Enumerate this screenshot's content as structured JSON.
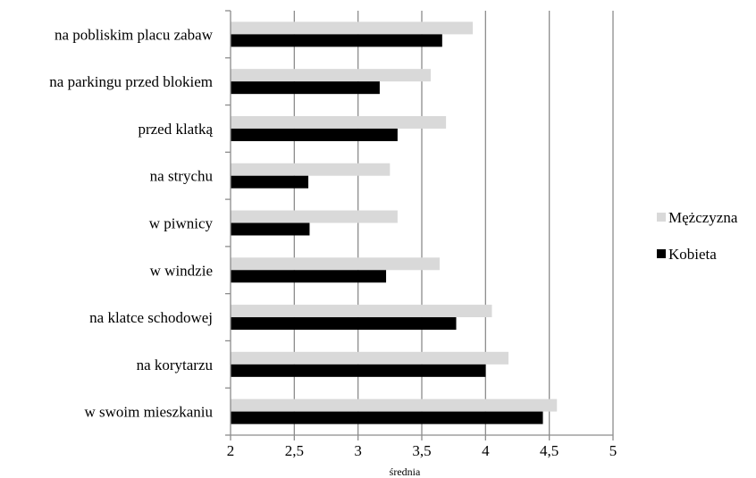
{
  "chart_data": {
    "type": "bar",
    "orientation": "horizontal",
    "categories": [
      "na pobliskim placu zabaw",
      "na parkingu przed blokiem",
      "przed klatką",
      "na strychu",
      "w piwnicy",
      "w windzie",
      "na klatce schodowej",
      "na korytarzu",
      "w swoim mieszkaniu"
    ],
    "series": [
      {
        "name": "Mężczyzna",
        "color": "#d9d9d9",
        "values": [
          3.9,
          3.57,
          3.69,
          3.25,
          3.31,
          3.64,
          4.05,
          4.18,
          4.56
        ]
      },
      {
        "name": "Kobieta",
        "color": "#000000",
        "values": [
          3.66,
          3.17,
          3.31,
          2.61,
          2.62,
          3.22,
          3.77,
          4.0,
          4.45
        ]
      }
    ],
    "xlabel": "średnia",
    "ylabel": "",
    "xlim": [
      2,
      5
    ],
    "x_ticks": [
      "2",
      "2,5",
      "3",
      "3,5",
      "4",
      "4,5",
      "5"
    ],
    "x_tick_values": [
      2,
      2.5,
      3,
      3.5,
      4,
      4.5,
      5
    ],
    "grid": true,
    "legend_position": "right"
  }
}
